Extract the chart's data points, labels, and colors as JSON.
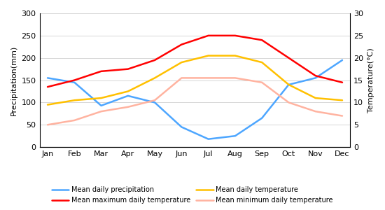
{
  "months": [
    "Jan",
    "Feb",
    "Mar",
    "Apr",
    "May",
    "Jun",
    "Jul",
    "Aug",
    "Sep",
    "Oct",
    "Nov",
    "Dec"
  ],
  "precipitation": [
    155,
    145,
    93,
    115,
    100,
    45,
    18,
    25,
    65,
    140,
    155,
    195
  ],
  "max_temp": [
    13.5,
    15,
    17,
    17.5,
    19.5,
    23,
    25,
    25,
    24,
    20,
    16,
    14.5
  ],
  "mean_temp": [
    9.5,
    10.5,
    11,
    12.5,
    15.5,
    19,
    20.5,
    20.5,
    19,
    14,
    11,
    10.5
  ],
  "min_temp": [
    5,
    6,
    8,
    9,
    10.5,
    15.5,
    15.5,
    15.5,
    14.5,
    10,
    8,
    7
  ],
  "precip_color": "#4da6ff",
  "max_temp_color": "#FF0000",
  "mean_temp_color": "#FFC000",
  "min_temp_color": "#FFB3A0",
  "ylim_left": [
    0,
    300
  ],
  "ylim_right": [
    0,
    30
  ],
  "yticks_left": [
    0,
    50,
    100,
    150,
    200,
    250,
    300
  ],
  "yticks_right": [
    0,
    5,
    10,
    15,
    20,
    25,
    30
  ],
  "ylabel_left": "Precipitation(mm)",
  "ylabel_right": "Temperature(°C)",
  "legend_labels_col1": [
    "Mean daily precipitation",
    "Mean daily temperature"
  ],
  "legend_labels_col2": [
    "Mean maximum daily temperature",
    "Mean minimum daily temperature"
  ],
  "background_color": "#ffffff",
  "line_width": 1.8,
  "tick_fontsize": 8,
  "label_fontsize": 8,
  "legend_fontsize": 7
}
